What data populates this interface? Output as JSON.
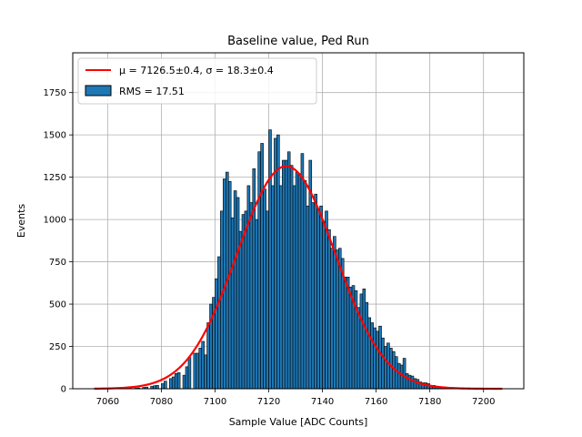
{
  "chart_data": {
    "type": "bar",
    "title": "Baseline value, Ped Run",
    "xlabel": "Sample Value [ADC Counts]",
    "ylabel": "Events",
    "xlim": [
      7047,
      7215
    ],
    "ylim": [
      0,
      1985
    ],
    "xticks": [
      7060,
      7080,
      7100,
      7120,
      7140,
      7160,
      7180,
      7200
    ],
    "yticks": [
      0,
      250,
      500,
      750,
      1000,
      1250,
      1500,
      1750
    ],
    "grid": true,
    "legend_position": "top-left",
    "colors": {
      "bars": "#1f77b4",
      "bar_edge": "#000000",
      "fit": "#ff0000",
      "grid": "#b0b0b0"
    },
    "series": [
      {
        "name": "RMS = 17.51",
        "type": "histogram",
        "bin_width": 1,
        "bin_start": 7068,
        "values": [
          2,
          0,
          3,
          5,
          0,
          8,
          10,
          0,
          14,
          18,
          20,
          0,
          30,
          45,
          0,
          60,
          70,
          90,
          95,
          0,
          80,
          130,
          185,
          0,
          210,
          210,
          240,
          280,
          200,
          390,
          500,
          540,
          650,
          780,
          1050,
          1240,
          1280,
          1225,
          1010,
          1170,
          1130,
          930,
          1030,
          1050,
          1200,
          1100,
          1300,
          1000,
          1400,
          1450,
          1180,
          1050,
          1530,
          1200,
          1480,
          1500,
          1200,
          1350,
          1350,
          1400,
          1320,
          1200,
          1280,
          1270,
          1390,
          1230,
          1080,
          1350,
          1100,
          1150,
          1060,
          1080,
          990,
          1050,
          940,
          830,
          900,
          820,
          830,
          770,
          660,
          660,
          600,
          610,
          580,
          480,
          560,
          590,
          510,
          420,
          390,
          360,
          340,
          370,
          300,
          250,
          270,
          240,
          220,
          190,
          150,
          140,
          180,
          90,
          80,
          75,
          60,
          55,
          40,
          35,
          35,
          30,
          20,
          20,
          15,
          12,
          10,
          10,
          8,
          6,
          5,
          4,
          3,
          2,
          2,
          1,
          1
        ]
      },
      {
        "name": "μ = 7126.5±0.4, σ = 18.3±0.4",
        "type": "gaussian_fit",
        "mu": 7126.5,
        "sigma": 18.3,
        "amplitude": 1315,
        "x_range": [
          7055,
          7207
        ]
      }
    ]
  }
}
